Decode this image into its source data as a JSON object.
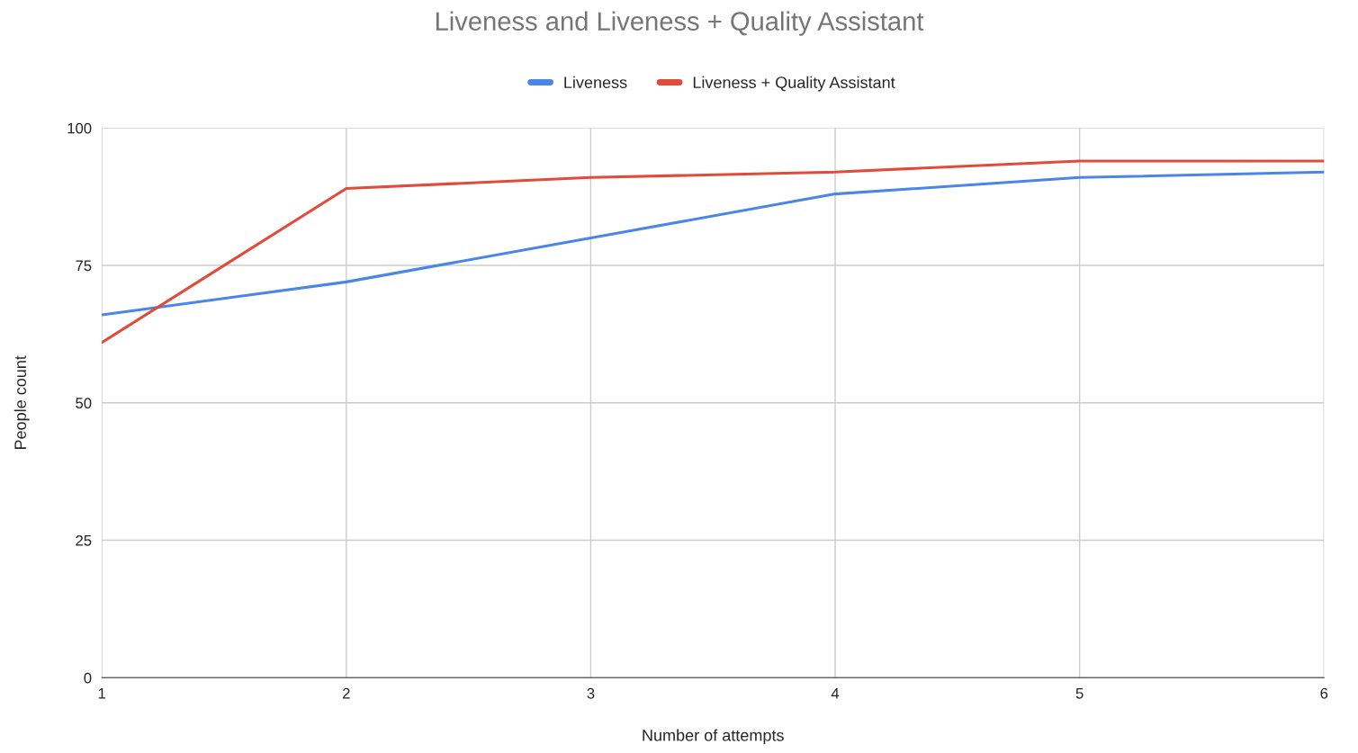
{
  "chart_data": {
    "type": "line",
    "title": "Liveness and Liveness + Quality Assistant",
    "xlabel": "Number of attempts",
    "ylabel": "People count",
    "x": [
      1,
      2,
      3,
      4,
      5,
      6
    ],
    "series": [
      {
        "name": "Liveness",
        "color": "#4a86e8",
        "values": [
          66,
          72,
          80,
          88,
          91,
          92
        ]
      },
      {
        "name": "Liveness + Quality Assistant",
        "color": "#e04b3c",
        "values": [
          61,
          89,
          91,
          92,
          94,
          94
        ]
      }
    ],
    "xlim": [
      1,
      6
    ],
    "xticks": [
      1,
      2,
      3,
      4,
      5,
      6
    ],
    "ylim": [
      0,
      100
    ],
    "yticks": [
      0,
      25,
      50,
      75,
      100
    ],
    "grid": true,
    "legend": "top",
    "marker": "none",
    "line_style": "solid"
  }
}
